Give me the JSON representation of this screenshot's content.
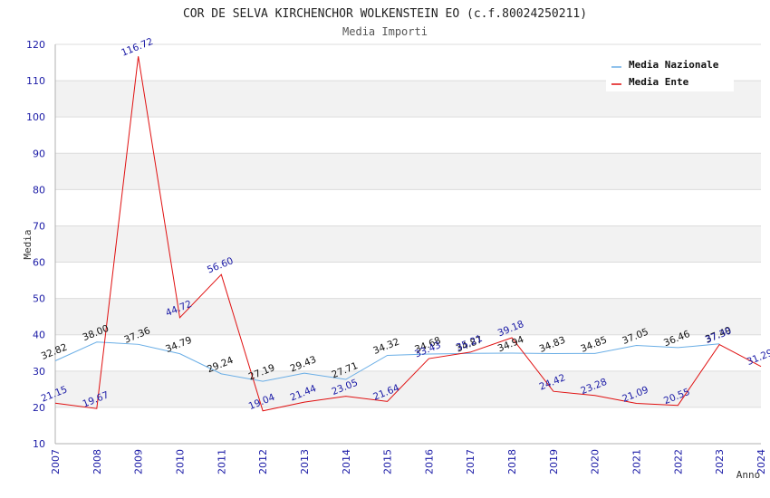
{
  "chart_data": {
    "type": "line",
    "title": "COR DE SELVA KIRCHENCHOR WOLKENSTEIN EO (c.f.80024250211)",
    "subtitle": "Media Importi",
    "xlabel": "Anno",
    "ylabel": "Media",
    "ylim": [
      10,
      120
    ],
    "yticks": [
      10,
      20,
      30,
      40,
      50,
      60,
      70,
      80,
      90,
      100,
      110,
      120
    ],
    "categories": [
      "2007",
      "2008",
      "2009",
      "2010",
      "2011",
      "2012",
      "2013",
      "2014",
      "2015",
      "2016",
      "2017",
      "2018",
      "2019",
      "2020",
      "2021",
      "2022",
      "2023",
      "2024"
    ],
    "legend_position": "top-right",
    "series": [
      {
        "name": "Media Nazionale",
        "color": "#6aaee6",
        "x": [
          "2007",
          "2008",
          "2009",
          "2010",
          "2011",
          "2012",
          "2013",
          "2014",
          "2015",
          "2016",
          "2017",
          "2018",
          "2019",
          "2020",
          "2021",
          "2022",
          "2023"
        ],
        "values": [
          32.82,
          38.0,
          37.36,
          34.79,
          29.24,
          27.19,
          29.43,
          27.71,
          34.32,
          34.68,
          34.87,
          34.94,
          34.83,
          34.85,
          37.05,
          36.46,
          37.49
        ],
        "labels": [
          "32.82",
          "38.00",
          "37.36",
          "34.79",
          "29.24",
          "27.19",
          "29.43",
          "27.71",
          "34.32",
          "34.68",
          "34.87",
          "34.94",
          "34.83",
          "34.85",
          "37.05",
          "36.46",
          "37.49"
        ]
      },
      {
        "name": "Media Ente",
        "color": "#e01010",
        "x": [
          "2007",
          "2008",
          "2009",
          "2010",
          "2011",
          "2012",
          "2013",
          "2014",
          "2015",
          "2016",
          "2017",
          "2018",
          "2019",
          "2020",
          "2021",
          "2022",
          "2023",
          "2024"
        ],
        "values": [
          21.15,
          19.67,
          116.72,
          44.72,
          56.6,
          19.04,
          21.44,
          23.05,
          21.64,
          33.43,
          35.21,
          39.18,
          24.42,
          23.28,
          21.09,
          20.55,
          37.3,
          31.29
        ],
        "labels": [
          "21.15",
          "19.67",
          "116.72",
          "44.72",
          "56.60",
          "19.04",
          "21.44",
          "23.05",
          "21.64",
          "33.43",
          "35.21",
          "39.18",
          "24.42",
          "23.28",
          "21.09",
          "20.55",
          "37.30",
          "31.29"
        ]
      }
    ]
  }
}
